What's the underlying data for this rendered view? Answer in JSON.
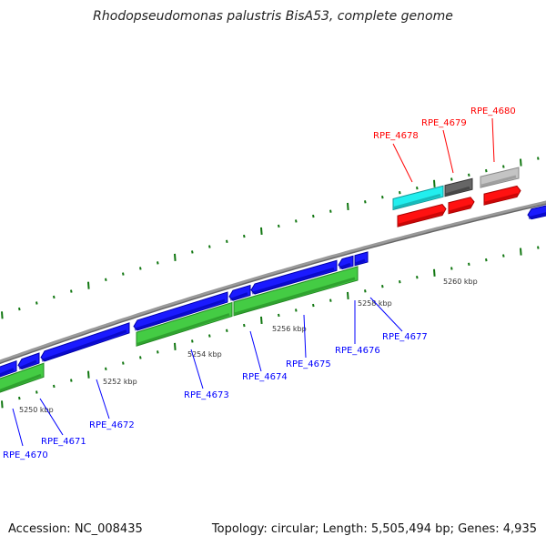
{
  "title": "Rhodopseudomonas palustris BisA53, complete genome",
  "footer": {
    "accession": "Accession: NC_008435",
    "topology": "Topology: circular; Length: 5,505,494 bp; Genes: 4,935"
  },
  "colors": {
    "backbone": "#888888",
    "forward_gene": "#ff0000",
    "reverse_gene": "#0000ff",
    "cds_reverse": "#33cc33",
    "tick": "#117711",
    "highlight": "#00eeee"
  },
  "kbp_labels": [
    "5250 kbp",
    "5252 kbp",
    "5254 kbp",
    "5256 kbp",
    "5258 kbp",
    "5260 kbp"
  ],
  "genes_reverse": [
    "RPE_4670",
    "RPE_4671",
    "RPE_4672",
    "RPE_4673",
    "RPE_4674",
    "RPE_4675",
    "RPE_4676",
    "RPE_4677"
  ],
  "genes_forward": [
    "RPE_4678",
    "RPE_4679",
    "RPE_4680"
  ]
}
